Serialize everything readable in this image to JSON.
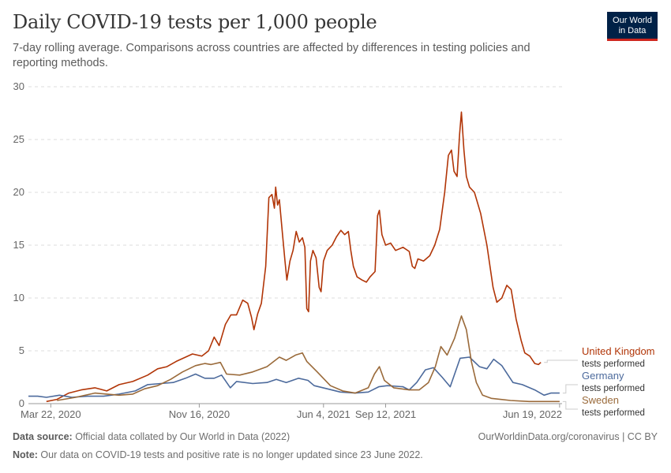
{
  "title": "Daily COVID-19 tests per 1,000 people",
  "subtitle": "7-day rolling average. Comparisons across countries are affected by differences in testing policies and reporting methods.",
  "logo": {
    "line1": "Our World",
    "line2": "in Data"
  },
  "footer": {
    "source_label": "Data source:",
    "source_text": " Official data collated by Our World in Data (2022)",
    "note_label": "Note:",
    "note_text": " Our data on COVID-19 tests and positive rate is no longer updated since 23 June 2022.",
    "credit": "OurWorldinData.org/coronavirus | CC BY"
  },
  "chart_data": {
    "type": "line",
    "title": "Daily COVID-19 tests per 1,000 people",
    "xlabel": "",
    "ylabel": "",
    "ylim": [
      0,
      30
    ],
    "xlim": [
      "2020-02-15",
      "2022-06-23"
    ],
    "y_ticks": [
      0,
      5,
      10,
      15,
      20,
      25,
      30
    ],
    "x_ticks": [
      "Mar 22, 2020",
      "Nov 16, 2020",
      "Jun 4, 2021",
      "Sep 12, 2021",
      "Jun 19, 2022"
    ],
    "x_tick_dates": [
      "2020-03-22",
      "2020-11-16",
      "2021-06-04",
      "2021-09-12",
      "2022-06-19"
    ],
    "grid": true,
    "legend_position": "right",
    "series": [
      {
        "name": "United Kingdom",
        "sublabel": "tests performed",
        "color": "#b13507",
        "points": [
          [
            "2020-03-15",
            0.2
          ],
          [
            "2020-04-01",
            0.4
          ],
          [
            "2020-04-20",
            1.0
          ],
          [
            "2020-05-10",
            1.3
          ],
          [
            "2020-06-01",
            1.5
          ],
          [
            "2020-06-20",
            1.2
          ],
          [
            "2020-07-10",
            1.8
          ],
          [
            "2020-08-01",
            2.1
          ],
          [
            "2020-08-25",
            2.7
          ],
          [
            "2020-09-10",
            3.3
          ],
          [
            "2020-09-25",
            3.5
          ],
          [
            "2020-10-10",
            4.0
          ],
          [
            "2020-10-25",
            4.4
          ],
          [
            "2020-11-05",
            4.7
          ],
          [
            "2020-11-20",
            4.5
          ],
          [
            "2020-12-01",
            5.0
          ],
          [
            "2020-12-10",
            6.3
          ],
          [
            "2020-12-18",
            5.5
          ],
          [
            "2020-12-28",
            7.5
          ],
          [
            "2021-01-06",
            8.4
          ],
          [
            "2021-01-15",
            8.4
          ],
          [
            "2021-01-25",
            9.8
          ],
          [
            "2021-02-02",
            9.5
          ],
          [
            "2021-02-08",
            8.2
          ],
          [
            "2021-02-12",
            7.0
          ],
          [
            "2021-02-18",
            8.5
          ],
          [
            "2021-02-24",
            9.5
          ],
          [
            "2021-03-03",
            13.0
          ],
          [
            "2021-03-08",
            19.5
          ],
          [
            "2021-03-13",
            19.8
          ],
          [
            "2021-03-17",
            18.5
          ],
          [
            "2021-03-19",
            20.5
          ],
          [
            "2021-03-22",
            18.8
          ],
          [
            "2021-03-25",
            19.3
          ],
          [
            "2021-03-30",
            16.0
          ],
          [
            "2021-04-03",
            13.5
          ],
          [
            "2021-04-06",
            11.7
          ],
          [
            "2021-04-11",
            13.5
          ],
          [
            "2021-04-16",
            14.5
          ],
          [
            "2021-04-21",
            16.3
          ],
          [
            "2021-04-26",
            15.3
          ],
          [
            "2021-05-01",
            15.7
          ],
          [
            "2021-05-05",
            14.8
          ],
          [
            "2021-05-08",
            9.0
          ],
          [
            "2021-05-11",
            8.7
          ],
          [
            "2021-05-14",
            13.5
          ],
          [
            "2021-05-18",
            14.5
          ],
          [
            "2021-05-23",
            13.8
          ],
          [
            "2021-05-28",
            11.0
          ],
          [
            "2021-05-31",
            10.6
          ],
          [
            "2021-06-04",
            13.5
          ],
          [
            "2021-06-10",
            14.5
          ],
          [
            "2021-06-18",
            15.0
          ],
          [
            "2021-06-25",
            15.8
          ],
          [
            "2021-07-02",
            16.4
          ],
          [
            "2021-07-08",
            16.0
          ],
          [
            "2021-07-14",
            16.3
          ],
          [
            "2021-07-18",
            14.5
          ],
          [
            "2021-07-22",
            13.0
          ],
          [
            "2021-07-28",
            12.0
          ],
          [
            "2021-08-05",
            11.7
          ],
          [
            "2021-08-12",
            11.5
          ],
          [
            "2021-08-18",
            12.0
          ],
          [
            "2021-08-26",
            12.5
          ],
          [
            "2021-08-30",
            17.8
          ],
          [
            "2021-09-02",
            18.3
          ],
          [
            "2021-09-06",
            16.0
          ],
          [
            "2021-09-12",
            15.0
          ],
          [
            "2021-09-20",
            15.2
          ],
          [
            "2021-09-28",
            14.5
          ],
          [
            "2021-10-10",
            14.8
          ],
          [
            "2021-10-20",
            14.4
          ],
          [
            "2021-10-25",
            13.0
          ],
          [
            "2021-10-29",
            12.8
          ],
          [
            "2021-11-03",
            13.7
          ],
          [
            "2021-11-12",
            13.5
          ],
          [
            "2021-11-22",
            14.0
          ],
          [
            "2021-11-30",
            15.0
          ],
          [
            "2021-12-08",
            16.5
          ],
          [
            "2021-12-16",
            20.0
          ],
          [
            "2021-12-22",
            23.5
          ],
          [
            "2021-12-27",
            24.0
          ],
          [
            "2021-12-31",
            22.0
          ],
          [
            "2022-01-05",
            21.5
          ],
          [
            "2022-01-09",
            25.5
          ],
          [
            "2022-01-12",
            27.6
          ],
          [
            "2022-01-16",
            24.0
          ],
          [
            "2022-01-20",
            21.5
          ],
          [
            "2022-01-25",
            20.5
          ],
          [
            "2022-02-02",
            20.0
          ],
          [
            "2022-02-12",
            18.0
          ],
          [
            "2022-02-22",
            15.0
          ],
          [
            "2022-03-04",
            11.0
          ],
          [
            "2022-03-10",
            9.6
          ],
          [
            "2022-03-18",
            10.0
          ],
          [
            "2022-03-26",
            11.2
          ],
          [
            "2022-04-02",
            10.8
          ],
          [
            "2022-04-10",
            8.0
          ],
          [
            "2022-04-18",
            6.0
          ],
          [
            "2022-04-24",
            4.8
          ],
          [
            "2022-05-02",
            4.5
          ],
          [
            "2022-05-10",
            3.8
          ],
          [
            "2022-05-16",
            3.7
          ],
          [
            "2022-05-20",
            3.9
          ]
        ]
      },
      {
        "name": "Germany",
        "sublabel": "tests performed",
        "color": "#4c6a9c",
        "points": [
          [
            "2020-02-15",
            0.7
          ],
          [
            "2020-03-01",
            0.7
          ],
          [
            "2020-03-15",
            0.6
          ],
          [
            "2020-04-05",
            0.8
          ],
          [
            "2020-04-25",
            0.6
          ],
          [
            "2020-05-20",
            0.7
          ],
          [
            "2020-06-15",
            0.7
          ],
          [
            "2020-07-10",
            0.9
          ],
          [
            "2020-08-05",
            1.2
          ],
          [
            "2020-08-25",
            1.8
          ],
          [
            "2020-09-15",
            1.9
          ],
          [
            "2020-10-05",
            2.0
          ],
          [
            "2020-10-25",
            2.4
          ],
          [
            "2020-11-10",
            2.8
          ],
          [
            "2020-11-25",
            2.4
          ],
          [
            "2020-12-10",
            2.4
          ],
          [
            "2020-12-22",
            2.7
          ],
          [
            "2021-01-05",
            1.5
          ],
          [
            "2021-01-15",
            2.1
          ],
          [
            "2021-02-10",
            1.9
          ],
          [
            "2021-03-05",
            2.0
          ],
          [
            "2021-03-20",
            2.3
          ],
          [
            "2021-04-05",
            2.0
          ],
          [
            "2021-04-25",
            2.4
          ],
          [
            "2021-05-10",
            2.2
          ],
          [
            "2021-05-20",
            1.7
          ],
          [
            "2021-06-10",
            1.4
          ],
          [
            "2021-07-01",
            1.1
          ],
          [
            "2021-07-25",
            1.0
          ],
          [
            "2021-08-15",
            1.1
          ],
          [
            "2021-09-01",
            1.6
          ],
          [
            "2021-09-15",
            1.7
          ],
          [
            "2021-10-10",
            1.6
          ],
          [
            "2021-10-20",
            1.3
          ],
          [
            "2021-11-01",
            2.0
          ],
          [
            "2021-11-15",
            3.2
          ],
          [
            "2021-11-28",
            3.4
          ],
          [
            "2021-12-12",
            2.5
          ],
          [
            "2021-12-25",
            1.6
          ],
          [
            "2022-01-10",
            4.3
          ],
          [
            "2022-01-25",
            4.4
          ],
          [
            "2022-02-10",
            3.5
          ],
          [
            "2022-02-22",
            3.3
          ],
          [
            "2022-03-05",
            4.2
          ],
          [
            "2022-03-18",
            3.6
          ],
          [
            "2022-04-05",
            2.0
          ],
          [
            "2022-04-20",
            1.8
          ],
          [
            "2022-05-10",
            1.3
          ],
          [
            "2022-05-25",
            0.8
          ],
          [
            "2022-06-05",
            1.0
          ],
          [
            "2022-06-19",
            1.0
          ]
        ]
      },
      {
        "name": "Sweden",
        "sublabel": "tests performed",
        "color": "#9a6a3a",
        "points": [
          [
            "2020-04-01",
            0.3
          ],
          [
            "2020-05-01",
            0.6
          ],
          [
            "2020-06-01",
            1.0
          ],
          [
            "2020-06-20",
            0.9
          ],
          [
            "2020-07-10",
            0.8
          ],
          [
            "2020-08-01",
            0.9
          ],
          [
            "2020-08-20",
            1.4
          ],
          [
            "2020-09-10",
            1.7
          ],
          [
            "2020-10-01",
            2.3
          ],
          [
            "2020-10-20",
            3.0
          ],
          [
            "2020-11-10",
            3.6
          ],
          [
            "2020-11-25",
            3.8
          ],
          [
            "2020-12-05",
            3.7
          ],
          [
            "2020-12-20",
            3.9
          ],
          [
            "2020-12-30",
            2.8
          ],
          [
            "2021-01-20",
            2.7
          ],
          [
            "2021-02-10",
            3.0
          ],
          [
            "2021-03-05",
            3.5
          ],
          [
            "2021-03-25",
            4.4
          ],
          [
            "2021-04-05",
            4.1
          ],
          [
            "2021-04-20",
            4.6
          ],
          [
            "2021-05-01",
            4.8
          ],
          [
            "2021-05-08",
            4.0
          ],
          [
            "2021-05-25",
            3.0
          ],
          [
            "2021-06-15",
            1.7
          ],
          [
            "2021-07-05",
            1.2
          ],
          [
            "2021-07-25",
            1.0
          ],
          [
            "2021-08-15",
            1.5
          ],
          [
            "2021-08-25",
            2.8
          ],
          [
            "2021-09-02",
            3.5
          ],
          [
            "2021-09-10",
            2.2
          ],
          [
            "2021-09-25",
            1.5
          ],
          [
            "2021-10-20",
            1.3
          ],
          [
            "2021-11-05",
            1.3
          ],
          [
            "2021-11-20",
            2.0
          ],
          [
            "2021-12-01",
            3.5
          ],
          [
            "2021-12-10",
            5.4
          ],
          [
            "2021-12-20",
            4.6
          ],
          [
            "2022-01-01",
            6.2
          ],
          [
            "2022-01-12",
            8.3
          ],
          [
            "2022-01-20",
            7.0
          ],
          [
            "2022-01-28",
            4.0
          ],
          [
            "2022-02-05",
            2.0
          ],
          [
            "2022-02-15",
            0.8
          ],
          [
            "2022-03-01",
            0.5
          ],
          [
            "2022-04-01",
            0.3
          ],
          [
            "2022-05-01",
            0.2
          ],
          [
            "2022-06-19",
            0.2
          ]
        ]
      }
    ]
  }
}
